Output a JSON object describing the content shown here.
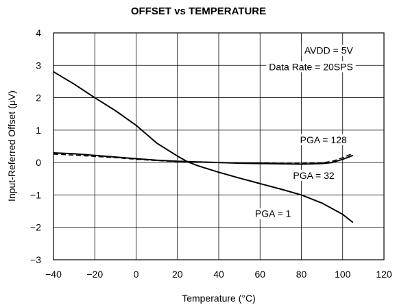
{
  "chart_data": {
    "type": "line",
    "title": "OFFSET vs TEMPERATURE",
    "xlabel": "Temperature (°C)",
    "ylabel": "Input-Referred Offset (μV)",
    "xlim": [
      -40,
      120
    ],
    "ylim": [
      -3,
      4
    ],
    "xticks": [
      "−40",
      "−20",
      "0",
      "20",
      "40",
      "60",
      "80",
      "100",
      "120"
    ],
    "yticks": [
      "4",
      "3",
      "2",
      "1",
      "0",
      "−1",
      "−2",
      "−3"
    ],
    "grid": true,
    "annotations": [
      {
        "text": "AVDD = 5V",
        "x": 105,
        "y": 3.35
      },
      {
        "text": "Data Rate = 20SPS",
        "x": 105,
        "y": 2.85
      },
      {
        "text": "PGA = 128",
        "x": 102,
        "y": 0.6
      },
      {
        "text": "PGA = 32",
        "x": 96,
        "y": -0.5
      },
      {
        "text": "PGA = 1",
        "x": 75,
        "y": -1.68
      }
    ],
    "series": [
      {
        "name": "PGA = 1",
        "style": "solid",
        "x": [
          -40,
          -30,
          -20,
          -10,
          0,
          10,
          20,
          25,
          30,
          40,
          50,
          60,
          70,
          80,
          90,
          100,
          105
        ],
        "y": [
          2.8,
          2.42,
          2.0,
          1.6,
          1.15,
          0.6,
          0.2,
          0.02,
          -0.1,
          -0.3,
          -0.48,
          -0.65,
          -0.82,
          -1.0,
          -1.25,
          -1.6,
          -1.85
        ]
      },
      {
        "name": "PGA = 32",
        "style": "solid",
        "x": [
          -40,
          -30,
          -20,
          -10,
          0,
          10,
          20,
          25,
          30,
          40,
          50,
          60,
          70,
          80,
          90,
          95,
          100,
          105
        ],
        "y": [
          0.3,
          0.27,
          0.22,
          0.17,
          0.12,
          0.07,
          0.04,
          0.03,
          0.02,
          0.0,
          -0.02,
          -0.03,
          -0.04,
          -0.05,
          -0.03,
          0.0,
          0.1,
          0.22
        ]
      },
      {
        "name": "PGA = 128",
        "style": "dashed",
        "x": [
          -40,
          -30,
          -20,
          -10,
          0,
          10,
          20,
          25,
          30,
          40,
          50,
          60,
          70,
          80,
          90,
          95,
          100,
          105
        ],
        "y": [
          0.26,
          0.23,
          0.19,
          0.15,
          0.1,
          0.06,
          0.03,
          0.02,
          0.01,
          0.0,
          -0.01,
          -0.02,
          -0.03,
          -0.03,
          -0.01,
          0.04,
          0.15,
          0.28
        ]
      }
    ]
  }
}
